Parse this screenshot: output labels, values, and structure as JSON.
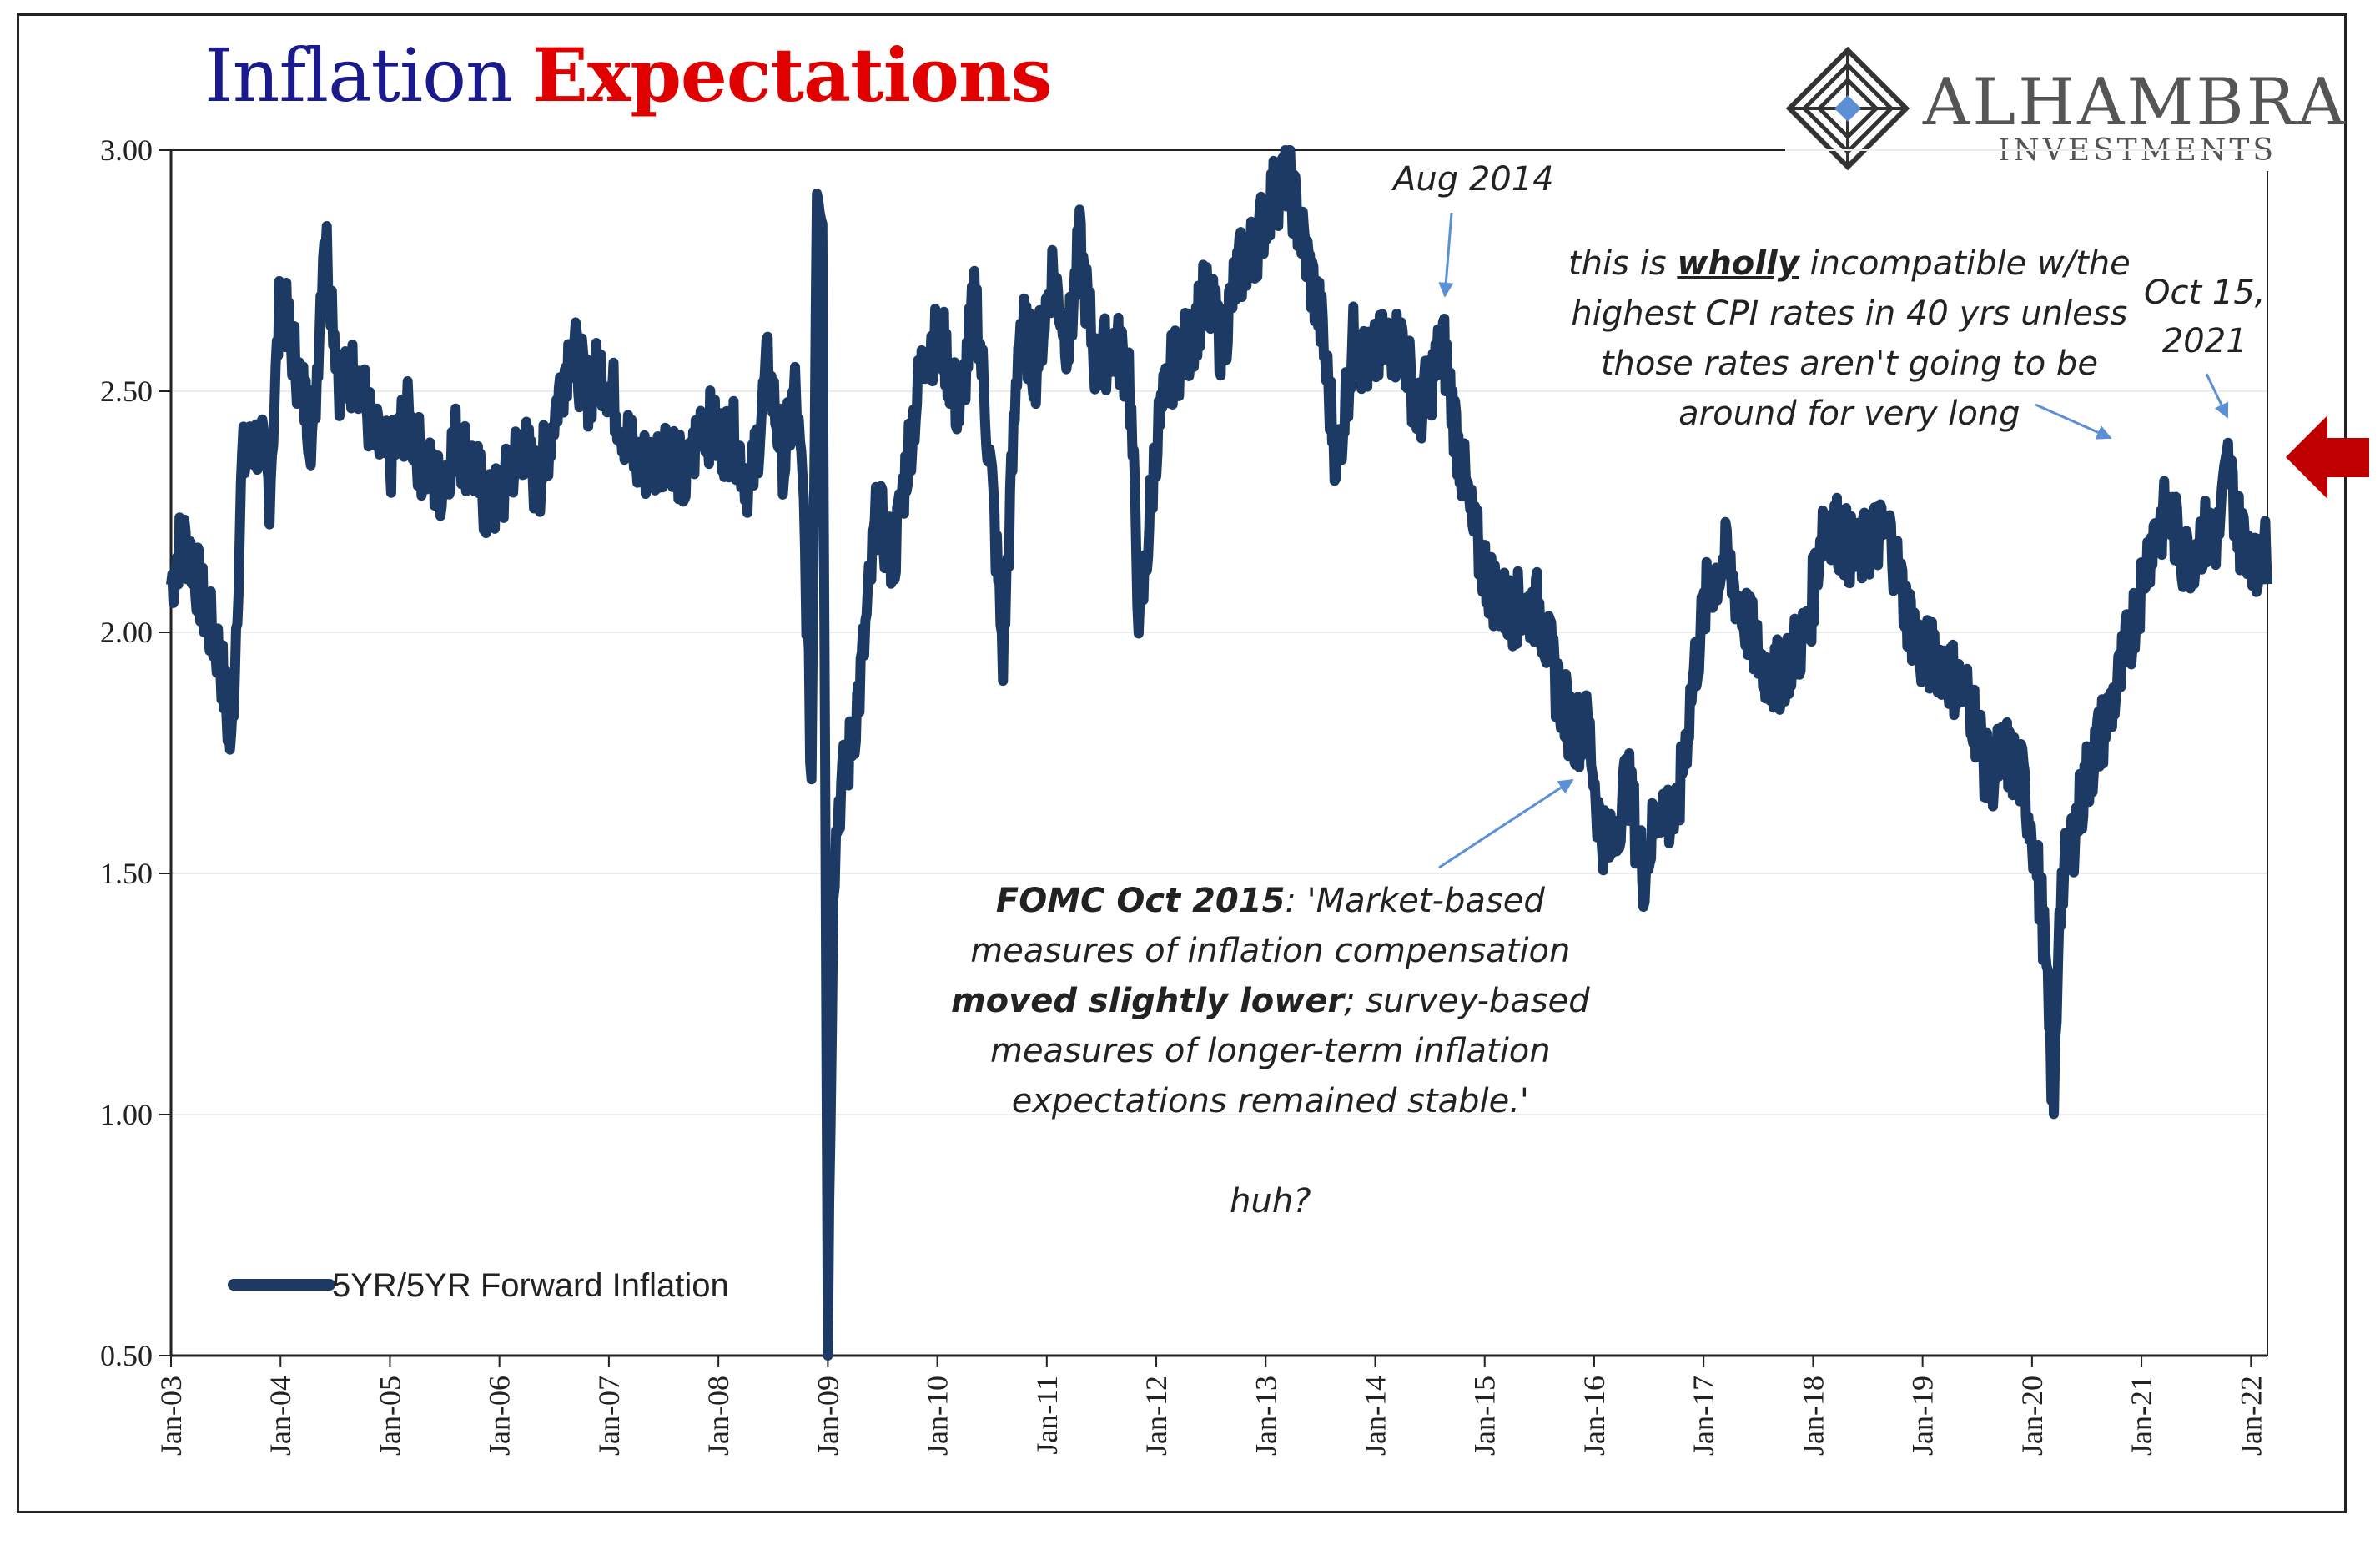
{
  "title": {
    "part1": "Inflation",
    "part2": "Expectations"
  },
  "logo": {
    "name": "ALHAMBRA",
    "sub": "INVESTMENTS"
  },
  "annotations": {
    "aug2014": "Aug 2014",
    "oct2021_l1": "Oct 15,",
    "oct2021_l2": "2021",
    "cpi_l1_a": "this is ",
    "cpi_l1_b": "wholly",
    "cpi_l1_c": " incompatible w/the",
    "cpi_l2": "highest CPI rates in 40 yrs unless",
    "cpi_l3": "those rates aren't going to be",
    "cpi_l4": "around for very long",
    "fomc_l1_a": "FOMC Oct 2015",
    "fomc_l1_b": ": 'Market-based",
    "fomc_l2": "measures of inflation compensation",
    "fomc_l3_a": "moved slightly lower",
    "fomc_l3_b": "; survey-based",
    "fomc_l4": "measures of longer-term inflation",
    "fomc_l5": "expectations remained stable.'",
    "huh": "huh?"
  },
  "colors": {
    "series": "#1c3a63",
    "arrow": "#c00000",
    "title1": "#1a1a8c",
    "title2": "#e00000",
    "annArrow": "#5b8fd6"
  },
  "chart_data": {
    "type": "line",
    "title": "Inflation Expectations",
    "xlabel": "",
    "ylabel": "",
    "ylim": [
      0.5,
      3.0
    ],
    "yticks": [
      "0.50",
      "1.00",
      "1.50",
      "2.00",
      "2.50",
      "3.00"
    ],
    "xticks": [
      "Jan-03",
      "Jan-04",
      "Jan-05",
      "Jan-06",
      "Jan-07",
      "Jan-08",
      "Jan-09",
      "Jan-10",
      "Jan-11",
      "Jan-12",
      "Jan-13",
      "Jan-14",
      "Jan-15",
      "Jan-16",
      "Jan-17",
      "Jan-18",
      "Jan-19",
      "Jan-20",
      "Jan-21",
      "Jan-22"
    ],
    "xlim": [
      2003.0,
      2022.15
    ],
    "legend": "bottom-left",
    "grid": true,
    "series": [
      {
        "name": "5YR/5YR Forward Inflation",
        "x": [
          2003.0,
          2003.1,
          2003.2,
          2003.3,
          2003.45,
          2003.55,
          2003.65,
          2003.8,
          2003.9,
          2004.0,
          2004.15,
          2004.3,
          2004.4,
          2004.55,
          2004.7,
          2004.85,
          2005.0,
          2005.15,
          2005.3,
          2005.45,
          2005.6,
          2005.75,
          2005.9,
          2006.05,
          2006.2,
          2006.35,
          2006.5,
          2006.65,
          2006.8,
          2006.95,
          2007.1,
          2007.25,
          2007.4,
          2007.55,
          2007.7,
          2007.85,
          2008.0,
          2008.15,
          2008.3,
          2008.45,
          2008.6,
          2008.7,
          2008.78,
          2008.85,
          2008.9,
          2008.95,
          2009.0,
          2009.05,
          2009.1,
          2009.2,
          2009.3,
          2009.45,
          2009.6,
          2009.75,
          2009.9,
          2010.05,
          2010.2,
          2010.35,
          2010.5,
          2010.6,
          2010.75,
          2010.9,
          2011.05,
          2011.2,
          2011.3,
          2011.45,
          2011.6,
          2011.75,
          2011.85,
          2012.0,
          2012.15,
          2012.3,
          2012.45,
          2012.6,
          2012.75,
          2012.9,
          2013.05,
          2013.2,
          2013.35,
          2013.5,
          2013.65,
          2013.8,
          2013.95,
          2014.1,
          2014.25,
          2014.4,
          2014.55,
          2014.62,
          2014.75,
          2014.9,
          2015.05,
          2015.2,
          2015.35,
          2015.5,
          2015.65,
          2015.8,
          2015.95,
          2016.05,
          2016.15,
          2016.3,
          2016.45,
          2016.6,
          2016.75,
          2016.9,
          2017.05,
          2017.2,
          2017.35,
          2017.5,
          2017.65,
          2017.8,
          2017.95,
          2018.1,
          2018.25,
          2018.4,
          2018.55,
          2018.7,
          2018.85,
          2019.0,
          2019.15,
          2019.3,
          2019.45,
          2019.6,
          2019.75,
          2019.9,
          2020.0,
          2020.1,
          2020.2,
          2020.25,
          2020.35,
          2020.5,
          2020.65,
          2020.8,
          2020.95,
          2021.1,
          2021.25,
          2021.4,
          2021.55,
          2021.7,
          2021.79,
          2021.9,
          2022.0,
          2022.05,
          2022.1,
          2022.15
        ],
        "y": [
          2.1,
          2.2,
          2.15,
          2.05,
          1.95,
          1.75,
          2.35,
          2.4,
          2.3,
          2.7,
          2.55,
          2.4,
          2.85,
          2.5,
          2.55,
          2.4,
          2.35,
          2.45,
          2.35,
          2.3,
          2.4,
          2.35,
          2.25,
          2.3,
          2.4,
          2.3,
          2.45,
          2.6,
          2.5,
          2.55,
          2.45,
          2.35,
          2.35,
          2.4,
          2.3,
          2.45,
          2.4,
          2.4,
          2.3,
          2.55,
          2.35,
          2.5,
          2.25,
          1.7,
          2.95,
          2.9,
          0.55,
          1.5,
          1.65,
          1.75,
          1.9,
          2.25,
          2.15,
          2.4,
          2.6,
          2.6,
          2.45,
          2.7,
          2.3,
          1.95,
          2.65,
          2.55,
          2.75,
          2.6,
          2.8,
          2.55,
          2.6,
          2.55,
          2.0,
          2.4,
          2.55,
          2.6,
          2.7,
          2.6,
          2.75,
          2.8,
          2.9,
          2.95,
          2.8,
          2.65,
          2.35,
          2.6,
          2.55,
          2.6,
          2.6,
          2.45,
          2.55,
          2.6,
          2.4,
          2.2,
          2.1,
          2.05,
          2.05,
          2.05,
          1.9,
          1.8,
          1.8,
          1.6,
          1.55,
          1.7,
          1.5,
          1.65,
          1.6,
          1.9,
          2.1,
          2.15,
          2.05,
          1.95,
          1.9,
          1.95,
          2.0,
          2.25,
          2.2,
          2.15,
          2.2,
          2.2,
          2.05,
          1.95,
          1.95,
          1.9,
          1.85,
          1.7,
          1.75,
          1.7,
          1.6,
          1.4,
          1.0,
          1.45,
          1.55,
          1.7,
          1.8,
          1.9,
          2.05,
          2.2,
          2.25,
          2.15,
          2.2,
          2.2,
          2.35,
          2.2,
          2.2,
          2.1,
          2.25,
          2.1
        ]
      }
    ]
  }
}
